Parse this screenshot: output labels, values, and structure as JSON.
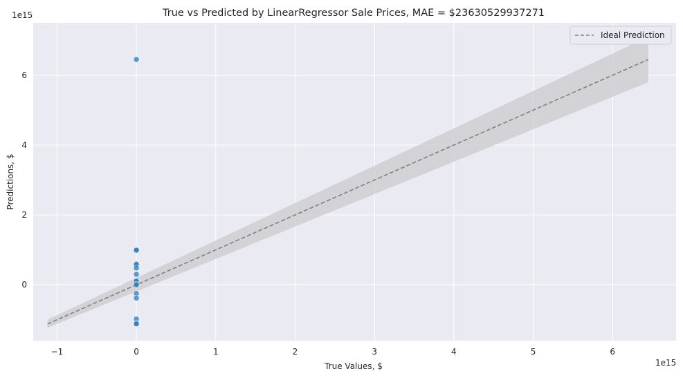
{
  "chart_data": {
    "type": "scatter",
    "title": "True vs Predicted by LinearRegressor Sale Prices, MAE = $23630529937271",
    "xlabel": "True Values, $",
    "ylabel": "Predictions, $",
    "x_offset_label": "1e15",
    "y_offset_label": "1e15",
    "x_scale": 1000000000000000.0,
    "y_scale": 1000000000000000.0,
    "xlim": [
      -1.3,
      6.8
    ],
    "ylim": [
      -1.6,
      7.5
    ],
    "x_ticks": [
      -1,
      0,
      1,
      2,
      3,
      4,
      5,
      6
    ],
    "x_tick_labels": [
      "−1",
      "0",
      "1",
      "2",
      "3",
      "4",
      "5",
      "6"
    ],
    "y_ticks": [
      0,
      2,
      4,
      6
    ],
    "y_tick_labels": [
      "0",
      "2",
      "4",
      "6"
    ],
    "grid": true,
    "legend": {
      "placement": "top-right",
      "entries": [
        "Ideal Prediction"
      ]
    },
    "colors": {
      "points": "#2b7bba",
      "ideal_line": "#808080",
      "band": "#c8c8cc",
      "background": "#eaeaf2"
    },
    "points": [
      {
        "x": 0,
        "y": 6.45
      },
      {
        "x": 0,
        "y": 1.0
      },
      {
        "x": 0,
        "y": 0.99
      },
      {
        "x": 0,
        "y": 0.6
      },
      {
        "x": 0,
        "y": 0.58
      },
      {
        "x": 0,
        "y": 0.48
      },
      {
        "x": 0,
        "y": 0.3
      },
      {
        "x": 0,
        "y": 0.12
      },
      {
        "x": 0,
        "y": 0.1
      },
      {
        "x": 0,
        "y": 0.02
      },
      {
        "x": 0,
        "y": 0.0
      },
      {
        "x": 0,
        "y": -0.25
      },
      {
        "x": 0,
        "y": -0.38
      },
      {
        "x": 0,
        "y": -0.98
      },
      {
        "x": 0,
        "y": -1.1
      },
      {
        "x": 0,
        "y": -1.12
      }
    ],
    "ideal_line": {
      "name": "Ideal Prediction",
      "x": [
        -1.12,
        6.45
      ],
      "y": [
        -1.12,
        6.45
      ]
    },
    "band": {
      "x": [
        -1.12,
        6.45
      ],
      "lower": [
        -1.23,
        5.8
      ],
      "upper": [
        -1.0,
        7.1
      ]
    }
  }
}
